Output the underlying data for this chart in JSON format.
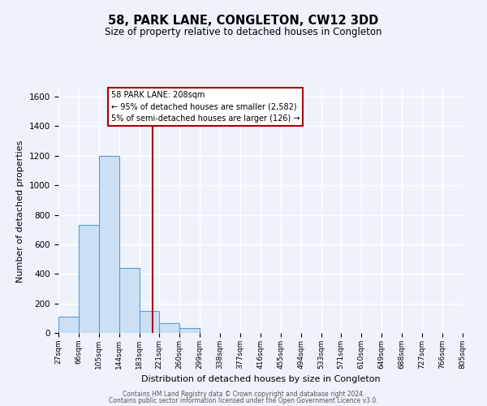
{
  "title1": "58, PARK LANE, CONGLETON, CW12 3DD",
  "title2": "Size of property relative to detached houses in Congleton",
  "xlabel": "Distribution of detached houses by size in Congleton",
  "ylabel": "Number of detached properties",
  "bin_edges": [
    27,
    66,
    105,
    144,
    183,
    221,
    260,
    299,
    338,
    377,
    416,
    455,
    494,
    533,
    571,
    610,
    649,
    688,
    727,
    766,
    805
  ],
  "bar_heights": [
    110,
    730,
    1200,
    440,
    150,
    65,
    35,
    0,
    0,
    0,
    0,
    0,
    0,
    0,
    0,
    0,
    0,
    0,
    0,
    0
  ],
  "bar_color": "#cce0f5",
  "bar_edge_color": "#5b9bd5",
  "vertical_line_x": 208,
  "vertical_line_color": "#aa0000",
  "ylim_max": 1650,
  "yticks": [
    0,
    200,
    400,
    600,
    800,
    1000,
    1200,
    1400,
    1600
  ],
  "annotation_line1": "58 PARK LANE: 208sqm",
  "annotation_line2": "← 95% of detached houses are smaller (2,582)",
  "annotation_line3": "5% of semi-detached houses are larger (126) →",
  "background_color": "#eef3fb",
  "grid_color": "#ffffff",
  "footer1": "Contains HM Land Registry data © Crown copyright and database right 2024.",
  "footer2": "Contains public sector information licensed under the Open Government Licence v3.0."
}
